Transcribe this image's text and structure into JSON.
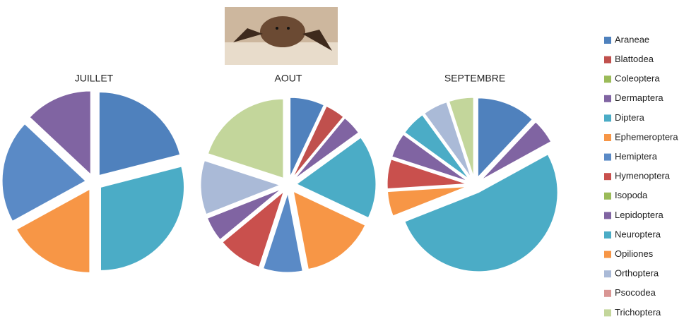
{
  "legend": {
    "categories": [
      "Araneae",
      "Blattodea",
      "Coleoptera",
      "Dermaptera",
      "Diptera",
      "Ephemeroptera",
      "Hemiptera",
      "Hymenoptera",
      "Isopoda",
      "Lepidoptera",
      "Neuroptera",
      "Opiliones",
      "Orthoptera",
      "Psocodea",
      "Trichoptera"
    ],
    "colors": [
      "#4f81bd",
      "#c0504d",
      "#9bbb59",
      "#8064a2",
      "#4bacc6",
      "#f79646",
      "#5a8ac6",
      "#c9504d",
      "#9bbb59",
      "#8064a2",
      "#4bacc6",
      "#f79646",
      "#aabad7",
      "#d99694",
      "#c3d69b"
    ]
  },
  "chart_data": [
    {
      "type": "pie",
      "title": "JUILLET",
      "values": [
        21,
        0,
        0,
        0,
        29,
        17,
        20,
        0,
        0,
        13,
        0,
        0,
        0,
        0,
        0
      ]
    },
    {
      "type": "pie",
      "title": "AOUT",
      "values": [
        7,
        4,
        0,
        4,
        17,
        15,
        8,
        9,
        0,
        5,
        0,
        0,
        11,
        0,
        20
      ]
    },
    {
      "type": "pie",
      "title": "SEPTEMBRE",
      "values": [
        12,
        0,
        0,
        5,
        52,
        5,
        0,
        6,
        0,
        5,
        5,
        0,
        5,
        0,
        5
      ]
    }
  ]
}
